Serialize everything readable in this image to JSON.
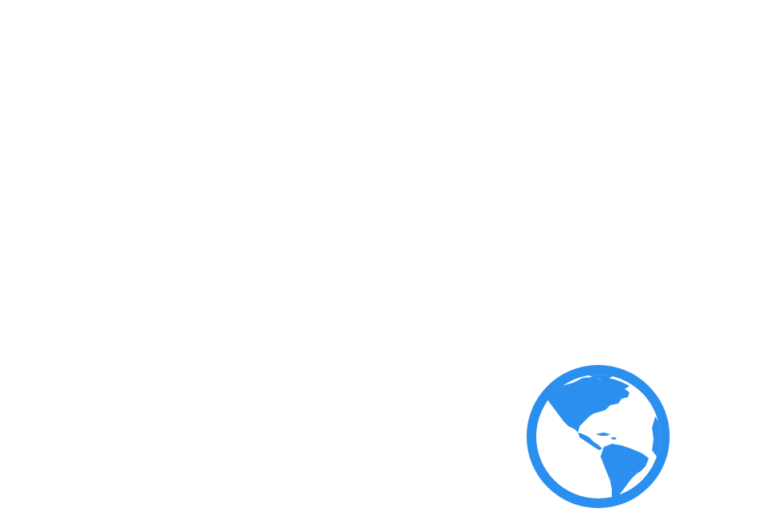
{
  "globe": {
    "icon": "globe-americas-icon",
    "color": "#2B8FEF",
    "background": "#FFFFFF"
  }
}
